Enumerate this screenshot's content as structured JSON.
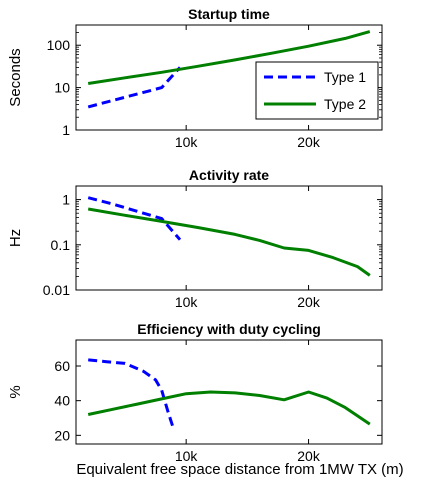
{
  "figure": {
    "xlabel": "Equivalent free space distance from 1MW TX (m)"
  },
  "colors": {
    "type1": "#0000ff",
    "type2": "#007f00"
  },
  "chart_data": [
    {
      "type": "line",
      "title": "Startup time",
      "ylabel": "Seconds",
      "xlim": [
        1000,
        26000
      ],
      "ylim": [
        1,
        300
      ],
      "yscale": "log",
      "xticks": [
        10000,
        20000
      ],
      "xticklabels": [
        "10k",
        "20k"
      ],
      "yticks": [
        1,
        10,
        100
      ],
      "yticklabels": [
        "1",
        "10",
        "100"
      ],
      "legend": {
        "placement": "inside-right",
        "entries": [
          "Type 1",
          "Type 2"
        ]
      },
      "series": [
        {
          "name": "Type 1",
          "style": "dashed",
          "color": "#0000ff",
          "x": [
            2000,
            8000,
            8800,
            9500
          ],
          "y": [
            3.5,
            10,
            18,
            30
          ]
        },
        {
          "name": "Type 2",
          "style": "solid",
          "color": "#007f00",
          "x": [
            2000,
            5000,
            8000,
            11000,
            14000,
            17000,
            20000,
            23000,
            25000
          ],
          "y": [
            12.5,
            17,
            23,
            32,
            45,
            65,
            95,
            145,
            210
          ]
        }
      ]
    },
    {
      "type": "line",
      "title": "Activity rate",
      "ylabel": "Hz",
      "xlim": [
        1000,
        26000
      ],
      "ylim": [
        0.01,
        2
      ],
      "yscale": "log",
      "xticks": [
        10000,
        20000
      ],
      "xticklabels": [
        "10k",
        "20k"
      ],
      "yticks": [
        0.01,
        0.1,
        1
      ],
      "yticklabels": [
        "0.01",
        "0.1",
        "1"
      ],
      "series": [
        {
          "name": "Type 1",
          "style": "dashed",
          "color": "#0000ff",
          "x": [
            2000,
            4000,
            6000,
            8000,
            9500
          ],
          "y": [
            1.1,
            0.8,
            0.55,
            0.38,
            0.13
          ]
        },
        {
          "name": "Type 2",
          "style": "solid",
          "color": "#007f00",
          "x": [
            2000,
            5000,
            8000,
            11000,
            14000,
            16000,
            18000,
            20000,
            22000,
            24000,
            25000
          ],
          "y": [
            0.62,
            0.45,
            0.33,
            0.24,
            0.17,
            0.125,
            0.085,
            0.075,
            0.052,
            0.033,
            0.021
          ]
        }
      ]
    },
    {
      "type": "line",
      "title": "Efficiency with duty cycling",
      "ylabel": "%",
      "xlim": [
        1000,
        26000
      ],
      "ylim": [
        15,
        75
      ],
      "yscale": "linear",
      "xticks": [
        10000,
        20000
      ],
      "xticklabels": [
        "10k",
        "20k"
      ],
      "yticks": [
        20,
        40,
        60
      ],
      "yticklabels": [
        "20",
        "40",
        "60"
      ],
      "series": [
        {
          "name": "Type 1",
          "style": "dashed",
          "color": "#0000ff",
          "x": [
            2000,
            3500,
            5000,
            6500,
            7500,
            8000,
            8500,
            9000
          ],
          "y": [
            63.5,
            62.5,
            61.5,
            57,
            52,
            46,
            34,
            23
          ]
        },
        {
          "name": "Type 2",
          "style": "solid",
          "color": "#007f00",
          "x": [
            2000,
            4000,
            6000,
            8000,
            10000,
            12000,
            14000,
            16000,
            18000,
            20000,
            21500,
            23000,
            25000
          ],
          "y": [
            32,
            35,
            38,
            41,
            44,
            45,
            44.5,
            43,
            40.5,
            45,
            41.5,
            36,
            26.5
          ]
        }
      ]
    }
  ]
}
